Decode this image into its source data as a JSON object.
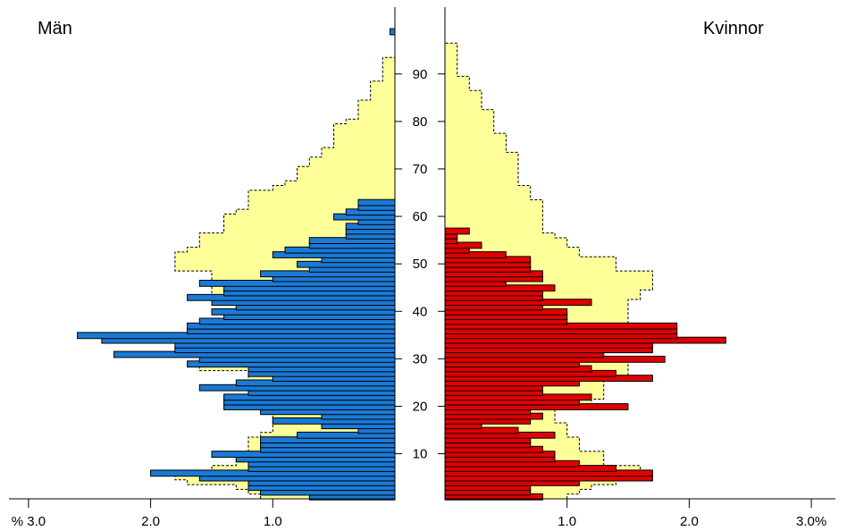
{
  "chart_data": {
    "type": "population-pyramid",
    "title_left": "Män",
    "title_right": "Kvinnor",
    "age_ticks": [
      10,
      20,
      30,
      40,
      50,
      60,
      70,
      80,
      90
    ],
    "x_tick_labels_left": [
      "% 3.0",
      "2.0",
      "1.0"
    ],
    "x_tick_labels_right": [
      "1.0",
      "2.0",
      "3.0%"
    ],
    "xlim": [
      0,
      3.0
    ],
    "age_range": [
      0,
      99
    ],
    "colors": {
      "men": "#1a7ad6",
      "women": "#e00000",
      "reference": "#ffff99",
      "reference_border": "#000000"
    },
    "series": [
      {
        "name": "Män",
        "side": "left",
        "ages": [
          1,
          2,
          3,
          4,
          5,
          6,
          7,
          8,
          9,
          10,
          11,
          12,
          13,
          14,
          15,
          16,
          17,
          18,
          19,
          20,
          21,
          22,
          23,
          24,
          25,
          26,
          27,
          28,
          29,
          30,
          31,
          32,
          33,
          34,
          35,
          36,
          37,
          38,
          39,
          40,
          41,
          42,
          43,
          44,
          45,
          46,
          47,
          48,
          49,
          50,
          51,
          52,
          53,
          54,
          55,
          56,
          57,
          58,
          59,
          60,
          61,
          62,
          63,
          64,
          65,
          66,
          67,
          68,
          69,
          70,
          71,
          72,
          73,
          74,
          75,
          76,
          77,
          78,
          79,
          80,
          81,
          82,
          83,
          84,
          85,
          86,
          87,
          88,
          89,
          90,
          91,
          92,
          93,
          94,
          95,
          96,
          97,
          98,
          99
        ],
        "values": [
          0.7,
          1.1,
          1.2,
          1.2,
          1.6,
          2.0,
          1.2,
          1.2,
          1.3,
          1.5,
          1.1,
          1.1,
          1.1,
          0.8,
          0.3,
          0.6,
          1.0,
          0.6,
          1.1,
          1.4,
          1.4,
          1.4,
          1.2,
          1.6,
          1.3,
          1.0,
          1.2,
          1.2,
          1.7,
          1.6,
          2.3,
          1.8,
          1.8,
          2.4,
          2.6,
          1.7,
          1.7,
          1.6,
          1.4,
          1.5,
          1.3,
          1.5,
          1.7,
          1.4,
          1.4,
          1.6,
          1.0,
          1.1,
          0.7,
          0.8,
          0.6,
          1.0,
          0.9,
          0.7,
          0.7,
          0.4,
          0.4,
          0.4,
          0.3,
          0.5,
          0.4,
          0.3,
          0.3,
          0.0,
          0.0,
          0.0,
          0.0,
          0.0,
          0.0,
          0.0,
          0.0,
          0.0,
          0.0,
          0.0,
          0.0,
          0.0,
          0.0,
          0.0,
          0.0,
          0.0,
          0.0,
          0.0,
          0.0,
          0.0,
          0.0,
          0.0,
          0.0,
          0.0,
          0.0,
          0.0,
          0.0,
          0.0,
          0.0,
          0.0,
          0.0,
          0.0,
          0.0,
          0.0,
          0.04
        ]
      },
      {
        "name": "Kvinnor",
        "side": "right",
        "ages": [
          1,
          2,
          3,
          4,
          5,
          6,
          7,
          8,
          9,
          10,
          11,
          12,
          13,
          14,
          15,
          16,
          17,
          18,
          19,
          20,
          21,
          22,
          23,
          24,
          25,
          26,
          27,
          28,
          29,
          30,
          31,
          32,
          33,
          34,
          35,
          36,
          37,
          38,
          39,
          40,
          41,
          42,
          43,
          44,
          45,
          46,
          47,
          48,
          49,
          50,
          51,
          52,
          53,
          54,
          55,
          56,
          57,
          58,
          59,
          60,
          61,
          62,
          63,
          64,
          65,
          66,
          67,
          68,
          69,
          70,
          71,
          72,
          73,
          74,
          75,
          76,
          77,
          78,
          79,
          80,
          81,
          82,
          83,
          84,
          85,
          86,
          87,
          88,
          89,
          90,
          91,
          92,
          93,
          94,
          95,
          96,
          97,
          98,
          99
        ],
        "values": [
          0.8,
          0.7,
          0.7,
          1.1,
          1.7,
          1.7,
          1.4,
          1.1,
          0.9,
          0.9,
          0.8,
          0.7,
          0.7,
          0.9,
          0.6,
          0.3,
          0.7,
          0.8,
          0.7,
          1.5,
          1.1,
          1.2,
          0.8,
          0.8,
          1.1,
          1.7,
          1.4,
          1.2,
          1.1,
          1.8,
          1.3,
          1.7,
          1.7,
          2.3,
          1.9,
          1.9,
          1.9,
          1.0,
          1.0,
          1.0,
          0.8,
          1.2,
          0.8,
          0.8,
          0.9,
          0.5,
          0.8,
          0.8,
          0.7,
          0.7,
          0.7,
          0.5,
          0.2,
          0.3,
          0.1,
          0.1,
          0.2,
          0.0,
          0.0,
          0.0,
          0.0,
          0.0,
          0.0,
          0.0,
          0.0,
          0.0,
          0.0,
          0.0,
          0.0,
          0.0,
          0.0,
          0.0,
          0.0,
          0.0,
          0.0,
          0.0,
          0.0,
          0.0,
          0.0,
          0.0,
          0.0,
          0.0,
          0.0,
          0.0,
          0.0,
          0.0,
          0.0,
          0.0,
          0.0,
          0.0,
          0.0,
          0.0,
          0.0,
          0.0,
          0.0,
          0.0,
          0.0,
          0.0,
          0.0
        ]
      },
      {
        "name": "reference-left",
        "side": "left",
        "ages": [
          1,
          2,
          3,
          4,
          5,
          6,
          7,
          8,
          9,
          10,
          11,
          12,
          13,
          14,
          15,
          16,
          17,
          18,
          19,
          20,
          21,
          22,
          23,
          24,
          25,
          26,
          27,
          28,
          29,
          30,
          31,
          32,
          33,
          34,
          35,
          36,
          37,
          38,
          39,
          40,
          41,
          42,
          43,
          44,
          45,
          46,
          47,
          48,
          49,
          50,
          51,
          52,
          53,
          54,
          55,
          56,
          57,
          58,
          59,
          60,
          61,
          62,
          63,
          64,
          65,
          66,
          67,
          68,
          69,
          70,
          71,
          72,
          73,
          74,
          75,
          76,
          77,
          78,
          79,
          80,
          81,
          82,
          83,
          84,
          85,
          86,
          87,
          88,
          89,
          90,
          91,
          92,
          93,
          94,
          95,
          96,
          97,
          98,
          99
        ],
        "values": [
          1.1,
          1.2,
          1.3,
          1.7,
          1.8,
          1.8,
          1.5,
          1.3,
          1.3,
          1.2,
          1.2,
          1.2,
          1.2,
          1.1,
          1.0,
          1.0,
          1.0,
          1.0,
          1.0,
          1.3,
          1.2,
          1.2,
          1.2,
          1.2,
          1.2,
          1.2,
          1.2,
          1.6,
          1.5,
          1.6,
          1.6,
          1.6,
          1.6,
          1.5,
          1.4,
          1.4,
          1.3,
          1.3,
          1.3,
          1.3,
          1.3,
          1.5,
          1.5,
          1.5,
          1.5,
          1.5,
          1.5,
          1.5,
          1.8,
          1.8,
          1.8,
          1.8,
          1.7,
          1.6,
          1.6,
          1.6,
          1.4,
          1.4,
          1.4,
          1.4,
          1.3,
          1.2,
          1.2,
          1.2,
          1.2,
          1.0,
          0.9,
          0.8,
          0.8,
          0.8,
          0.7,
          0.7,
          0.6,
          0.6,
          0.5,
          0.5,
          0.5,
          0.5,
          0.5,
          0.4,
          0.3,
          0.3,
          0.3,
          0.3,
          0.2,
          0.2,
          0.2,
          0.2,
          0.1,
          0.1,
          0.1,
          0.1,
          0.1,
          0.0,
          0.0,
          0.0,
          0.0,
          0.0,
          0.0
        ]
      },
      {
        "name": "reference-right",
        "side": "right",
        "ages": [
          1,
          2,
          3,
          4,
          5,
          6,
          7,
          8,
          9,
          10,
          11,
          12,
          13,
          14,
          15,
          16,
          17,
          18,
          19,
          20,
          21,
          22,
          23,
          24,
          25,
          26,
          27,
          28,
          29,
          30,
          31,
          32,
          33,
          34,
          35,
          36,
          37,
          38,
          39,
          40,
          41,
          42,
          43,
          44,
          45,
          46,
          47,
          48,
          49,
          50,
          51,
          52,
          53,
          54,
          55,
          56,
          57,
          58,
          59,
          60,
          61,
          62,
          63,
          64,
          65,
          66,
          67,
          68,
          69,
          70,
          71,
          72,
          73,
          74,
          75,
          76,
          77,
          78,
          79,
          80,
          81,
          82,
          83,
          84,
          85,
          86,
          87,
          88,
          89,
          90,
          91,
          92,
          93,
          94,
          95,
          96,
          97,
          98,
          99
        ],
        "values": [
          1.0,
          1.1,
          1.2,
          1.4,
          1.6,
          1.6,
          1.6,
          1.3,
          1.3,
          1.3,
          1.1,
          1.1,
          1.1,
          1.0,
          1.0,
          1.0,
          0.9,
          0.9,
          0.9,
          1.3,
          1.2,
          1.3,
          1.3,
          1.3,
          1.3,
          1.5,
          1.5,
          1.5,
          1.5,
          1.5,
          1.3,
          1.3,
          1.3,
          1.2,
          1.2,
          1.2,
          1.5,
          1.5,
          1.5,
          1.5,
          1.5,
          1.5,
          1.6,
          1.6,
          1.7,
          1.7,
          1.7,
          1.7,
          1.4,
          1.4,
          1.4,
          1.1,
          1.1,
          1.0,
          1.0,
          0.9,
          0.8,
          0.8,
          0.8,
          0.8,
          0.8,
          0.8,
          0.8,
          0.7,
          0.7,
          0.7,
          0.6,
          0.6,
          0.6,
          0.6,
          0.6,
          0.6,
          0.6,
          0.5,
          0.5,
          0.5,
          0.5,
          0.4,
          0.4,
          0.4,
          0.4,
          0.4,
          0.3,
          0.3,
          0.3,
          0.3,
          0.2,
          0.2,
          0.2,
          0.1,
          0.1,
          0.1,
          0.1,
          0.1,
          0.1,
          0.1,
          0.0,
          0.0,
          0.0
        ]
      }
    ]
  }
}
